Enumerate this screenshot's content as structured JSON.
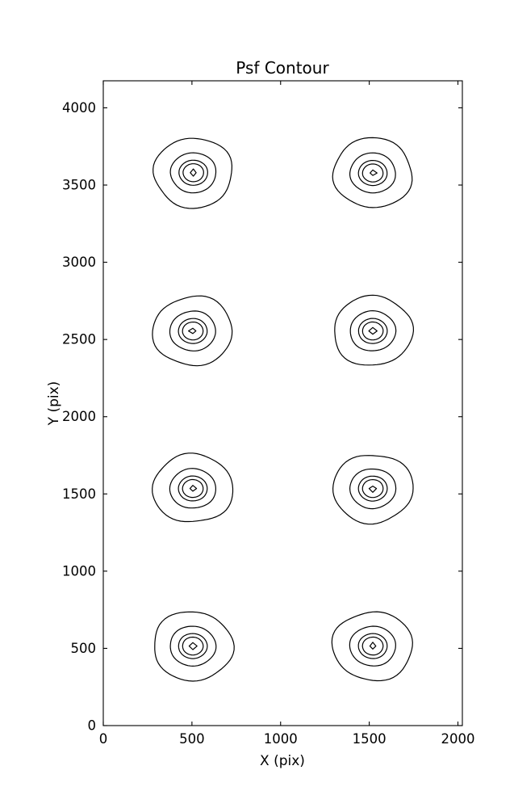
{
  "figure": {
    "background": "#ffffff",
    "frame_color": "#000000"
  },
  "chart_data": {
    "type": "contour",
    "title": "Psf Contour",
    "xlabel": "X (pix)",
    "ylabel": "Y (pix)",
    "xlim": [
      0,
      2025
    ],
    "ylim": [
      0,
      4175
    ],
    "xticks": [
      0,
      500,
      1000,
      1500,
      2000
    ],
    "yticks": [
      0,
      500,
      1000,
      1500,
      2000,
      2500,
      3000,
      3500,
      4000
    ],
    "grid": false,
    "legend": "none",
    "tick_direction": "in",
    "tick_length": 5,
    "line_color": "#000000",
    "line_width": 1.2,
    "n_levels": 5,
    "level_radii": [
      224,
      129,
      81,
      58,
      20
    ],
    "sources": [
      {
        "x": 505,
        "y": 515
      },
      {
        "x": 1520,
        "y": 515
      },
      {
        "x": 505,
        "y": 1535
      },
      {
        "x": 1520,
        "y": 1535
      },
      {
        "x": 505,
        "y": 2555
      },
      {
        "x": 1520,
        "y": 2555
      },
      {
        "x": 508,
        "y": 3580
      },
      {
        "x": 1520,
        "y": 3578
      }
    ]
  }
}
